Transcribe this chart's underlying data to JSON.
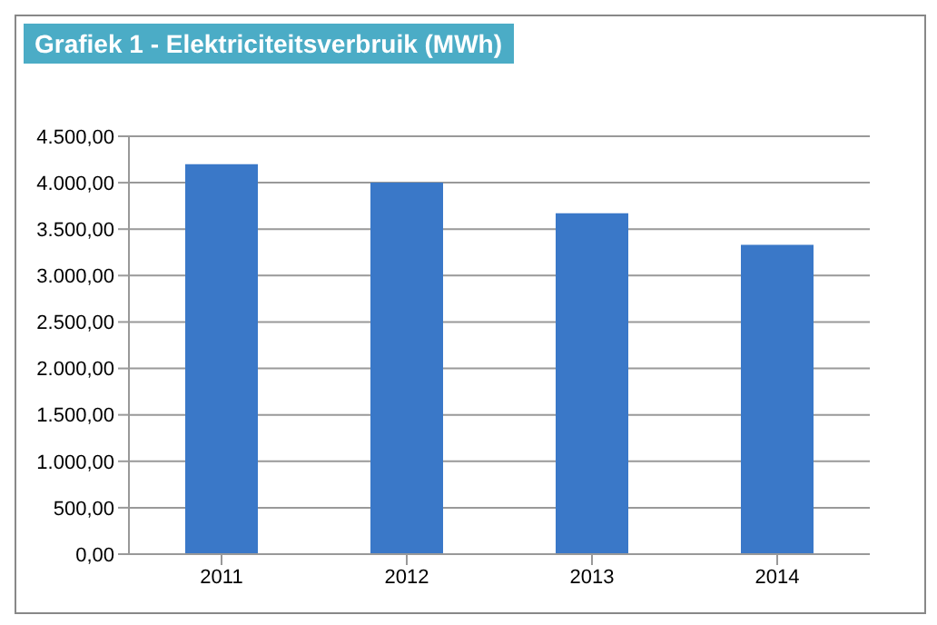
{
  "chart_data": {
    "type": "bar",
    "title": "Grafiek 1 - Elektriciteitsverbruik (MWh)",
    "categories": [
      "2011",
      "2012",
      "2013",
      "2014"
    ],
    "values": [
      4200,
      4000,
      3670,
      3330
    ],
    "color": "#3a78c8",
    "ylim": [
      0,
      4500
    ],
    "yticks": [
      {
        "value": 0,
        "label": "0,00"
      },
      {
        "value": 500,
        "label": "500,00"
      },
      {
        "value": 1000,
        "label": "1.000,00"
      },
      {
        "value": 1500,
        "label": "1.500,00"
      },
      {
        "value": 2000,
        "label": "2.000,00"
      },
      {
        "value": 2500,
        "label": "2.500,00"
      },
      {
        "value": 3000,
        "label": "3.000,00"
      },
      {
        "value": 3500,
        "label": "3.500,00"
      },
      {
        "value": 4000,
        "label": "4.000,00"
      },
      {
        "value": 4500,
        "label": "4.500,00"
      }
    ],
    "grid": "y",
    "legend": false
  }
}
